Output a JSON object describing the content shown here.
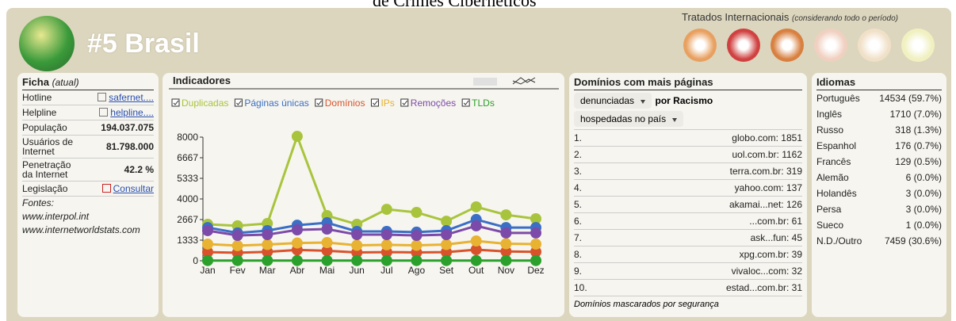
{
  "header": {
    "title": "de Crimes Cibernéticos",
    "rank_country": "#5 Brasil",
    "treaties_title": "Tratados Internacionais",
    "treaties_note": "(considerando todo o período)"
  },
  "ficha": {
    "title": "Ficha",
    "title_note": "(atual)",
    "rows": [
      [
        "Hotline",
        "safernet...."
      ],
      [
        "Helpline",
        "helpline...."
      ],
      [
        "População",
        "194.037.075"
      ],
      [
        "Usuários de Internet",
        "81.798.000"
      ],
      [
        "Penetração da Internet",
        "42.2 %"
      ],
      [
        "Legislação",
        "Consultar"
      ]
    ],
    "sources_label": "Fontes:",
    "sources": [
      "www.interpol.int",
      "www.internetworldstats.com"
    ]
  },
  "chart_data": {
    "type": "line",
    "title": "Indicadores",
    "categories": [
      "Jan",
      "Fev",
      "Mar",
      "Abr",
      "Mai",
      "Jun",
      "Jul",
      "Ago",
      "Set",
      "Out",
      "Nov",
      "Dez"
    ],
    "series": [
      {
        "name": "Duplicadas",
        "color": "#a8c43c",
        "values": [
          2360,
          2260,
          2410,
          8050,
          2920,
          2360,
          3330,
          3130,
          2560,
          3490,
          2970,
          2720
        ]
      },
      {
        "name": "Páginas únicas",
        "color": "#3b6fc6",
        "values": [
          2150,
          1800,
          1950,
          2300,
          2460,
          1900,
          1900,
          1850,
          1950,
          2670,
          2150,
          2150
        ]
      },
      {
        "name": "Domínios",
        "color": "#d8532c",
        "values": [
          560,
          520,
          580,
          700,
          650,
          540,
          560,
          540,
          560,
          720,
          600,
          580
        ]
      },
      {
        "name": "IPs",
        "color": "#e8b232",
        "values": [
          1080,
          980,
          1050,
          1150,
          1180,
          1000,
          1030,
          1000,
          1050,
          1280,
          1100,
          1080
        ]
      },
      {
        "name": "Remoções",
        "color": "#7c4aa8",
        "values": [
          1950,
          1640,
          1690,
          2000,
          2050,
          1690,
          1690,
          1640,
          1690,
          2260,
          1800,
          1800
        ]
      },
      {
        "name": "TLDs",
        "color": "#2ca02c",
        "values": [
          15,
          15,
          15,
          15,
          15,
          15,
          15,
          15,
          15,
          15,
          15,
          15
        ]
      }
    ],
    "ylim": [
      0,
      8000
    ],
    "yticks": [
      0,
      1333,
      2667,
      4000,
      5333,
      6667,
      8000
    ]
  },
  "dominios": {
    "title": "Domínios com mais páginas",
    "select1": "denunciadas",
    "by": "por Racismo",
    "select2": "hospedadas no país",
    "rows": [
      [
        "1.",
        "globo.com: 1851"
      ],
      [
        "2.",
        "uol.com.br: 1162"
      ],
      [
        "3.",
        "terra.com.br: 319"
      ],
      [
        "4.",
        "yahoo.com: 137"
      ],
      [
        "5.",
        "akamai...net: 126"
      ],
      [
        "6.",
        "...com.br: 61"
      ],
      [
        "7.",
        "ask...fun: 45"
      ],
      [
        "8.",
        "xpg.com.br: 39"
      ],
      [
        "9.",
        "vivaloc...com: 32"
      ],
      [
        "10.",
        "estad...com.br: 31"
      ]
    ],
    "note": "Domínios mascarados por segurança"
  },
  "idiomas": {
    "title": "Idiomas",
    "rows": [
      [
        "Português",
        "14534 (59.7%)"
      ],
      [
        "Inglês",
        "1710 (7.0%)"
      ],
      [
        "Russo",
        "318 (1.3%)"
      ],
      [
        "Espanhol",
        "176 (0.7%)"
      ],
      [
        "Francês",
        "129 (0.5%)"
      ],
      [
        "Alemão",
        "6 (0.0%)"
      ],
      [
        "Holandês",
        "3 (0.0%)"
      ],
      [
        "Persa",
        "3 (0.0%)"
      ],
      [
        "Sueco",
        "1 (0.0%)"
      ],
      [
        "N.D./Outro",
        "7459 (30.6%)"
      ]
    ]
  }
}
